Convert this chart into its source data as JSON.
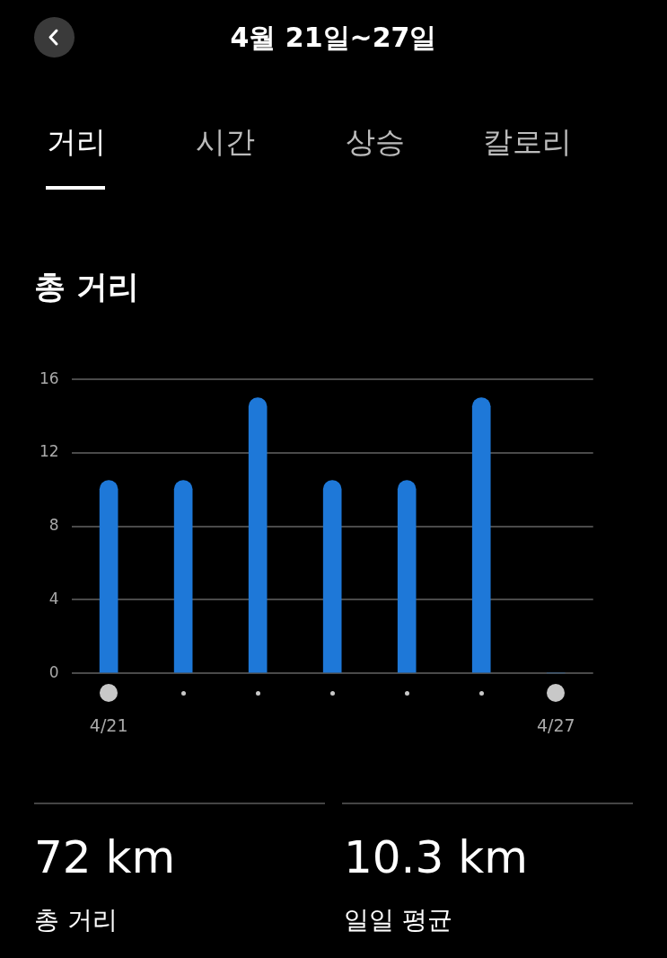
{
  "chart_data": {
    "type": "bar",
    "subtitle": "4월 21일~27일",
    "title": "총 거리",
    "annotations": [
      "거리",
      "시간",
      "상승",
      "칼로리",
      "72 km",
      "총 거리",
      "10.3 km",
      "일일 평균"
    ],
    "categories": [
      "4/21",
      null,
      null,
      null,
      null,
      null,
      "4/27"
    ],
    "values": [
      10.5,
      10.5,
      15,
      10.5,
      10.5,
      15,
      0
    ],
    "color": "#1e78d8",
    "ylim": [
      0,
      16
    ],
    "yticks": [
      0,
      4,
      8,
      12,
      16
    ],
    "grid": "y"
  }
}
